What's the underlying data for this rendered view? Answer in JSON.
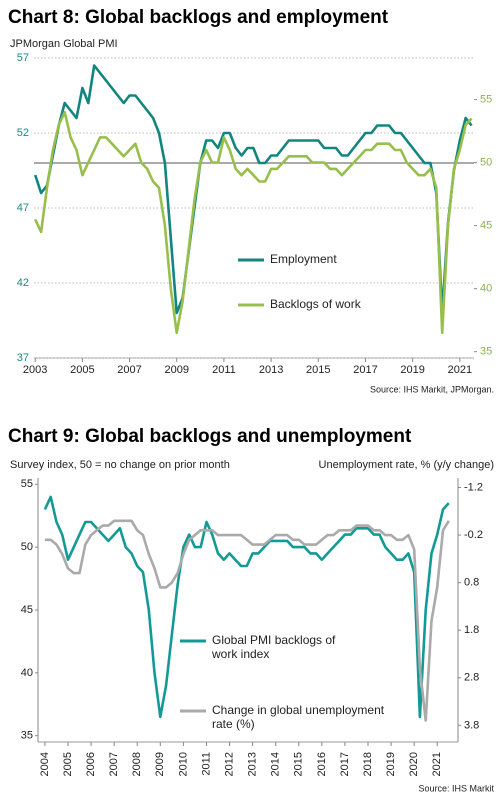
{
  "chart_data": [
    {
      "type": "line",
      "title": "Chart 8: Global backlogs and employment",
      "y_label": "JPMorgan Global PMI",
      "source": "Source: IHS Markit, JPMorgan.",
      "xlim": [
        2002.95,
        2021.6
      ],
      "xticks": [
        2003,
        2005,
        2007,
        2009,
        2011,
        2013,
        2015,
        2017,
        2019,
        2021
      ],
      "ylim": [
        37,
        57
      ],
      "yticks": [
        37,
        42,
        47,
        52,
        57
      ],
      "ytick_color": "#1a8a86",
      "y2lim": [
        34.5,
        58.3
      ],
      "y2ticks": [
        35,
        40,
        45,
        50,
        55
      ],
      "y2tick_color": "#8db34a",
      "y2_inverted": false,
      "grid": true,
      "reference_line": 50,
      "x": [
        2003,
        2003.25,
        2003.5,
        2003.75,
        2004,
        2004.25,
        2004.5,
        2004.75,
        2005,
        2005.25,
        2005.5,
        2005.75,
        2006,
        2006.25,
        2006.5,
        2006.75,
        2007,
        2007.25,
        2007.5,
        2007.75,
        2008,
        2008.25,
        2008.5,
        2008.75,
        2009,
        2009.25,
        2009.5,
        2009.75,
        2010,
        2010.25,
        2010.5,
        2010.75,
        2011,
        2011.25,
        2011.5,
        2011.75,
        2012,
        2012.25,
        2012.5,
        2012.75,
        2013,
        2013.25,
        2013.5,
        2013.75,
        2014,
        2014.25,
        2014.5,
        2014.75,
        2015,
        2015.25,
        2015.5,
        2015.75,
        2016,
        2016.25,
        2016.5,
        2016.75,
        2017,
        2017.25,
        2017.5,
        2017.75,
        2018,
        2018.25,
        2018.5,
        2018.75,
        2019,
        2019.25,
        2019.5,
        2019.75,
        2020,
        2020.25,
        2020.5,
        2020.75,
        2021,
        2021.25,
        2021.5
      ],
      "series": [
        {
          "name": "Employment",
          "color": "#13857f",
          "axis": "y",
          "values": [
            49.2,
            48,
            48.5,
            50.5,
            52.5,
            54,
            53.5,
            53,
            55,
            54,
            56.5,
            56,
            55.5,
            55,
            54.5,
            54,
            54.5,
            54.5,
            54,
            53.5,
            53,
            52,
            50,
            45,
            40,
            41,
            44,
            47,
            50,
            51.5,
            51.5,
            51,
            52,
            52,
            51,
            50.5,
            51,
            51,
            50,
            50,
            50.5,
            50.5,
            51,
            51.5,
            51.5,
            51.5,
            51.5,
            51.5,
            51.5,
            51,
            51,
            51,
            50.5,
            50.5,
            51,
            51.5,
            52,
            52,
            52.5,
            52.5,
            52.5,
            52,
            52,
            51.5,
            51,
            50.5,
            50,
            50,
            48,
            40,
            46,
            49.5,
            51.5,
            53,
            52.5
          ]
        },
        {
          "name": "Backlogs of work",
          "color": "#98bf4b",
          "axis": "y2",
          "values": [
            45.5,
            44.5,
            48,
            51,
            53,
            54,
            52,
            51,
            49,
            50,
            51,
            52,
            52,
            51.5,
            51,
            50.5,
            51,
            51.5,
            50,
            49.5,
            48.5,
            48,
            45,
            40,
            36.5,
            39,
            43,
            47,
            50,
            51,
            50,
            50,
            52,
            51,
            49.5,
            49,
            49.5,
            49,
            48.5,
            48.5,
            49.5,
            49.5,
            50,
            50.5,
            50.5,
            50.5,
            50.5,
            50,
            50,
            50,
            49.5,
            49.5,
            49,
            49.5,
            50,
            50.5,
            51,
            51,
            51.5,
            51.5,
            51.5,
            51,
            51,
            50,
            49.5,
            49,
            49,
            49.5,
            48,
            36.5,
            45,
            49.5,
            51,
            53,
            53.5
          ]
        }
      ]
    },
    {
      "type": "line",
      "title": "Chart 9: Global backlogs and unemployment",
      "y_label": "Survey index, 50 = no change on prior month",
      "y2_label": "Unemployment  rate, % (y/y change)",
      "source": "Source: IHS Markit",
      "xlim": [
        2003.7,
        2021.9
      ],
      "xticks": [
        2004,
        2005,
        2006,
        2007,
        2008,
        2009,
        2010,
        2011,
        2012,
        2013,
        2014,
        2015,
        2016,
        2017,
        2018,
        2019,
        2020,
        2021
      ],
      "ylim": [
        34.5,
        55.5
      ],
      "yticks": [
        35,
        40,
        45,
        50,
        55
      ],
      "ytick_color": "#222222",
      "y2lim": [
        -1.4,
        4.15
      ],
      "y2ticks": [
        -1.2,
        -0.2,
        0.8,
        1.8,
        2.8,
        3.8
      ],
      "y2tick_color": "#222222",
      "y2_inverted": true,
      "grid": false,
      "x": [
        2004,
        2004.25,
        2004.5,
        2004.75,
        2005,
        2005.25,
        2005.5,
        2005.75,
        2006,
        2006.25,
        2006.5,
        2006.75,
        2007,
        2007.25,
        2007.5,
        2007.75,
        2008,
        2008.25,
        2008.5,
        2008.75,
        2009,
        2009.25,
        2009.5,
        2009.75,
        2010,
        2010.25,
        2010.5,
        2010.75,
        2011,
        2011.25,
        2011.5,
        2011.75,
        2012,
        2012.25,
        2012.5,
        2012.75,
        2013,
        2013.25,
        2013.5,
        2013.75,
        2014,
        2014.25,
        2014.5,
        2014.75,
        2015,
        2015.25,
        2015.5,
        2015.75,
        2016,
        2016.25,
        2016.5,
        2016.75,
        2017,
        2017.25,
        2017.5,
        2017.75,
        2018,
        2018.25,
        2018.5,
        2018.75,
        2019,
        2019.25,
        2019.5,
        2019.75,
        2020,
        2020.25,
        2020.5,
        2020.75,
        2021,
        2021.25,
        2021.5
      ],
      "series": [
        {
          "name": "Global PMI backlogs of work index",
          "color": "#139a96",
          "axis": "y",
          "values": [
            53,
            54,
            52,
            51,
            49,
            50,
            51,
            52,
            52,
            51.5,
            51,
            50.5,
            51,
            51.5,
            50,
            49.5,
            48.5,
            48,
            45,
            40,
            36.5,
            39,
            43,
            47,
            50,
            51,
            50,
            50,
            52,
            51,
            49.5,
            49,
            49.5,
            49,
            48.5,
            48.5,
            49.5,
            49.5,
            50,
            50.5,
            50.5,
            50.5,
            50.5,
            50,
            50,
            50,
            49.5,
            49.5,
            49,
            49.5,
            50,
            50.5,
            51,
            51,
            51.5,
            51.5,
            51.5,
            51,
            51,
            50,
            49.5,
            49,
            49,
            49.5,
            48,
            36.5,
            45,
            49.5,
            51,
            53,
            53.5
          ]
        },
        {
          "name": "Change in global unemployment rate (%)",
          "color": "#aaaaaa",
          "axis": "y2",
          "values": [
            -0.1,
            -0.1,
            0,
            0.2,
            0.5,
            0.6,
            0.6,
            0,
            -0.2,
            -0.3,
            -0.4,
            -0.4,
            -0.5,
            -0.5,
            -0.5,
            -0.5,
            -0.3,
            -0.2,
            0.2,
            0.5,
            0.9,
            0.9,
            0.8,
            0.6,
            0.2,
            -0.1,
            -0.2,
            -0.3,
            -0.3,
            -0.3,
            -0.2,
            -0.2,
            -0.2,
            -0.2,
            -0.2,
            -0.1,
            0,
            0,
            0,
            -0.1,
            -0.2,
            -0.2,
            -0.2,
            -0.1,
            -0.1,
            0,
            0,
            0,
            -0.1,
            -0.2,
            -0.2,
            -0.3,
            -0.3,
            -0.3,
            -0.4,
            -0.4,
            -0.4,
            -0.3,
            -0.3,
            -0.2,
            -0.2,
            -0.1,
            -0.1,
            -0.2,
            0.1,
            2.6,
            3.7,
            1.6,
            0.9,
            -0.3,
            -0.5
          ]
        }
      ]
    }
  ]
}
